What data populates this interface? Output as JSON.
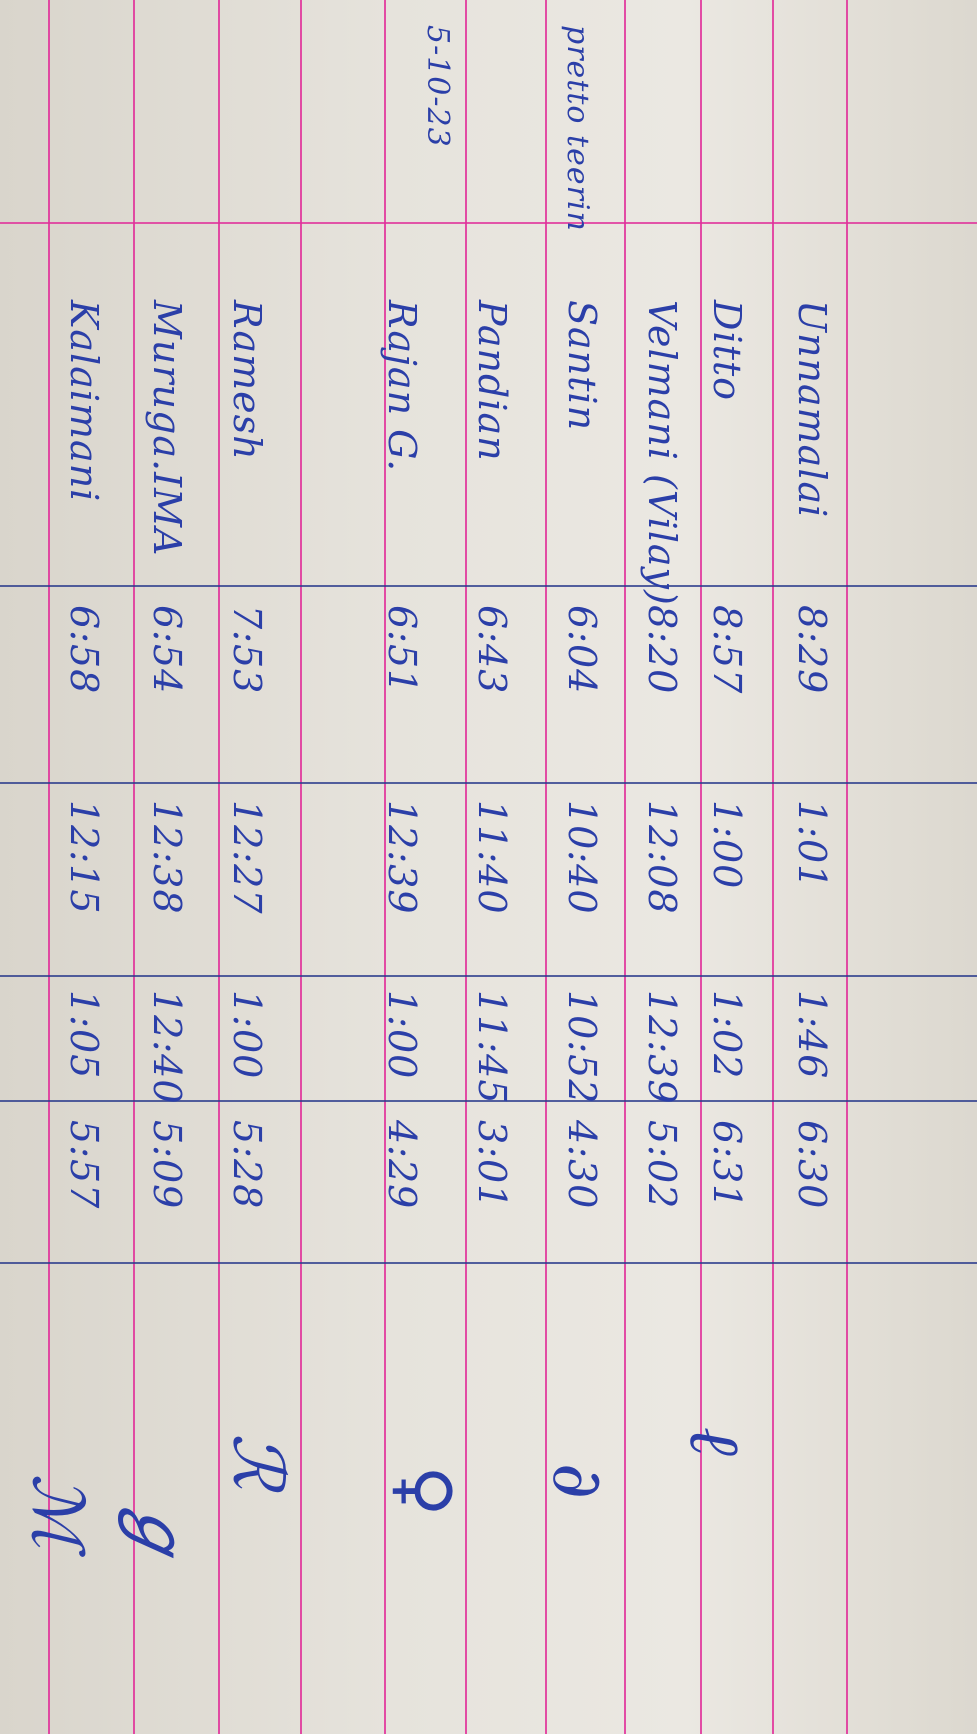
{
  "register": {
    "side_notes": {
      "date": "5-10-23",
      "note": "pretto teerin"
    },
    "rows": [
      {
        "name": "Unnamalai",
        "in": "8:29",
        "lunch_out": "1:01",
        "lunch_in": "1:46",
        "out": "6:30"
      },
      {
        "name": "Ditto",
        "in": "8:57",
        "lunch_out": "1:00",
        "lunch_in": "1:02",
        "out": "6:31"
      },
      {
        "name": "Velmani (Vilay)",
        "in": "8:20",
        "lunch_out": "12:08",
        "lunch_in": "12:39",
        "out": "5:02"
      },
      {
        "name": "Santin",
        "in": "6:04",
        "lunch_out": "10:40",
        "lunch_in": "10:52",
        "out": "4:30"
      },
      {
        "name": "Pandian",
        "in": "6:43",
        "lunch_out": "11:40",
        "lunch_in": "11:45",
        "out": "3:01"
      },
      {
        "name": "Rajan G.",
        "in": "6:51",
        "lunch_out": "12:39",
        "lunch_in": "1:00",
        "out": "4:29"
      },
      {
        "name": "Ramesh",
        "in": "7:53",
        "lunch_out": "12:27",
        "lunch_in": "1:00",
        "out": "5:28"
      },
      {
        "name": "Muruga.IMA",
        "in": "6:54",
        "lunch_out": "12:38",
        "lunch_in": "12:40",
        "out": "5:09"
      },
      {
        "name": "Kalaimani",
        "in": "6:58",
        "lunch_out": "12:15",
        "lunch_in": "1:05",
        "out": "5:57"
      }
    ]
  },
  "colors": {
    "ink": "#2b3fa8",
    "margin_line": "#e0309a",
    "rule_line": "#2c3c8c",
    "paper": "#e6e3dc"
  }
}
